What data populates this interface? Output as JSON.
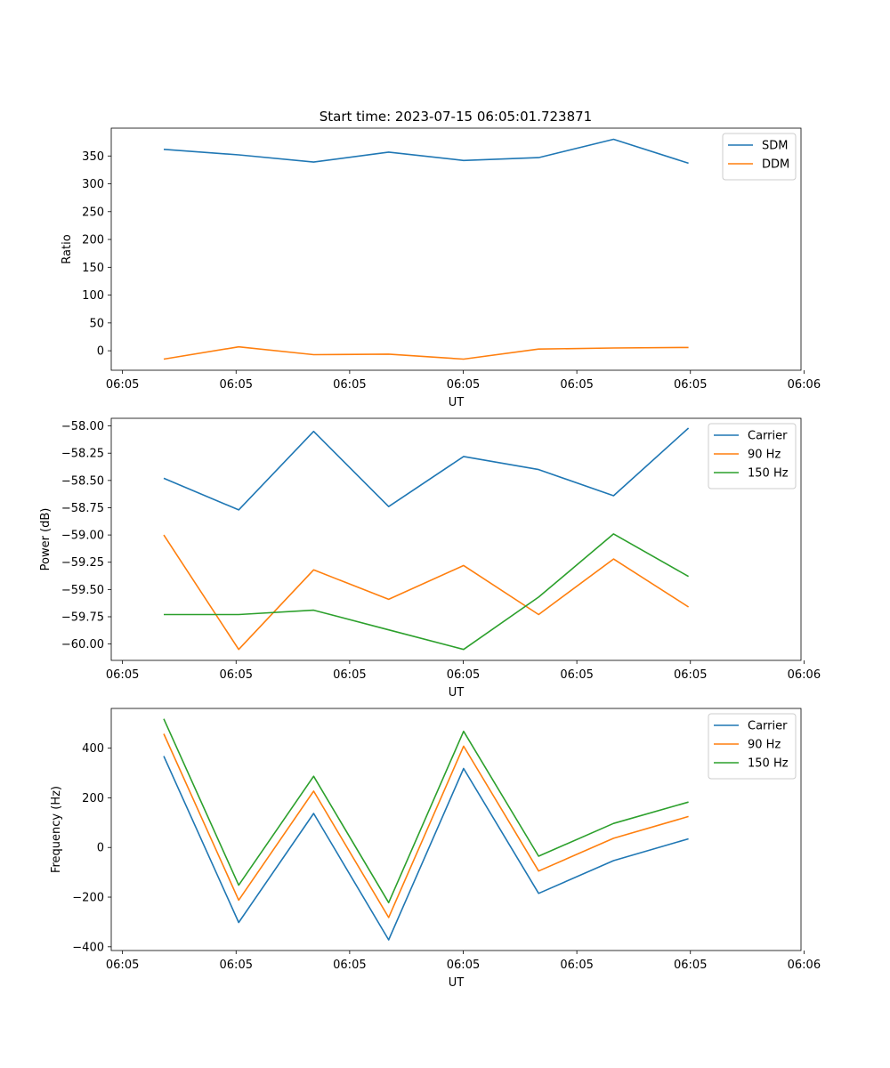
{
  "title": "Start time: 2023-07-15 06:05:01.723871",
  "colors": {
    "blue": "#1f77b4",
    "orange": "#ff7f0e",
    "green": "#2ca02c"
  },
  "chart_data": [
    {
      "type": "line",
      "name": "ratio",
      "xlabel": "UT",
      "ylabel": "Ratio",
      "x": [
        0,
        1,
        2,
        3,
        4,
        5,
        6,
        7
      ],
      "xlim": [
        -0.7,
        8.5
      ],
      "xticks": [
        -0.55,
        0.965,
        2.48,
        3.995,
        5.51,
        7.025,
        8.54
      ],
      "xtick_labels": [
        "06:05",
        "06:05",
        "06:05",
        "06:05",
        "06:05",
        "06:05",
        "06:06"
      ],
      "ylim": [
        -35,
        400
      ],
      "yticks": [
        0,
        50,
        100,
        150,
        200,
        250,
        300,
        350
      ],
      "ytick_labels": [
        "0",
        "50",
        "100",
        "150",
        "200",
        "250",
        "300",
        "350"
      ],
      "legend": "top-right",
      "series": [
        {
          "name": "SDM",
          "color": "#1f77b4",
          "values": [
            362,
            352,
            339,
            357,
            342,
            347,
            380,
            337
          ]
        },
        {
          "name": "DDM",
          "color": "#ff7f0e",
          "values": [
            -15,
            7,
            -7,
            -6,
            -15,
            3,
            5,
            6
          ]
        }
      ]
    },
    {
      "type": "line",
      "name": "power",
      "xlabel": "UT",
      "ylabel": "Power (dB)",
      "x": [
        0,
        1,
        2,
        3,
        4,
        5,
        6,
        7
      ],
      "xlim": [
        -0.7,
        8.5
      ],
      "xticks": [
        -0.55,
        0.965,
        2.48,
        3.995,
        5.51,
        7.025,
        8.54
      ],
      "xtick_labels": [
        "06:05",
        "06:05",
        "06:05",
        "06:05",
        "06:05",
        "06:05",
        "06:06"
      ],
      "ylim": [
        -60.15,
        -57.93
      ],
      "yticks": [
        -60.0,
        -59.75,
        -59.5,
        -59.25,
        -59.0,
        -58.75,
        -58.5,
        -58.25,
        -58.0
      ],
      "ytick_labels": [
        "−60.00",
        "−59.75",
        "−59.50",
        "−59.25",
        "−59.00",
        "−58.75",
        "−58.50",
        "−58.25",
        "−58.00"
      ],
      "legend": "top-right",
      "series": [
        {
          "name": "Carrier",
          "color": "#1f77b4",
          "values": [
            -58.48,
            -58.77,
            -58.05,
            -58.74,
            -58.28,
            -58.4,
            -58.64,
            -58.02
          ]
        },
        {
          "name": "90 Hz",
          "color": "#ff7f0e",
          "values": [
            -59.0,
            -60.05,
            -59.32,
            -59.59,
            -59.28,
            -59.73,
            -59.22,
            -59.66
          ]
        },
        {
          "name": "150 Hz",
          "color": "#2ca02c",
          "values": [
            -59.73,
            -59.73,
            -59.69,
            -59.87,
            -60.05,
            -59.57,
            -58.99,
            -59.38
          ]
        }
      ]
    },
    {
      "type": "line",
      "name": "frequency",
      "xlabel": "UT",
      "ylabel": "Frequency (Hz)",
      "x": [
        0,
        1,
        2,
        3,
        4,
        5,
        6,
        7
      ],
      "xlim": [
        -0.7,
        8.5
      ],
      "xticks": [
        -0.55,
        0.965,
        2.48,
        3.995,
        5.51,
        7.025,
        8.54
      ],
      "xtick_labels": [
        "06:05",
        "06:05",
        "06:05",
        "06:05",
        "06:05",
        "06:05",
        "06:06"
      ],
      "ylim": [
        -415,
        560
      ],
      "yticks": [
        -400,
        -200,
        0,
        200,
        400
      ],
      "ytick_labels": [
        "−400",
        "−200",
        "0",
        "200",
        "400"
      ],
      "legend": "top-right",
      "series": [
        {
          "name": "Carrier",
          "color": "#1f77b4",
          "values": [
            368,
            -302,
            137,
            -372,
            318,
            -185,
            -53,
            35
          ]
        },
        {
          "name": "90 Hz",
          "color": "#ff7f0e",
          "values": [
            458,
            -212,
            227,
            -282,
            408,
            -95,
            37,
            125
          ]
        },
        {
          "name": "150 Hz",
          "color": "#2ca02c",
          "values": [
            518,
            -152,
            287,
            -222,
            468,
            -35,
            97,
            183
          ]
        }
      ]
    }
  ]
}
